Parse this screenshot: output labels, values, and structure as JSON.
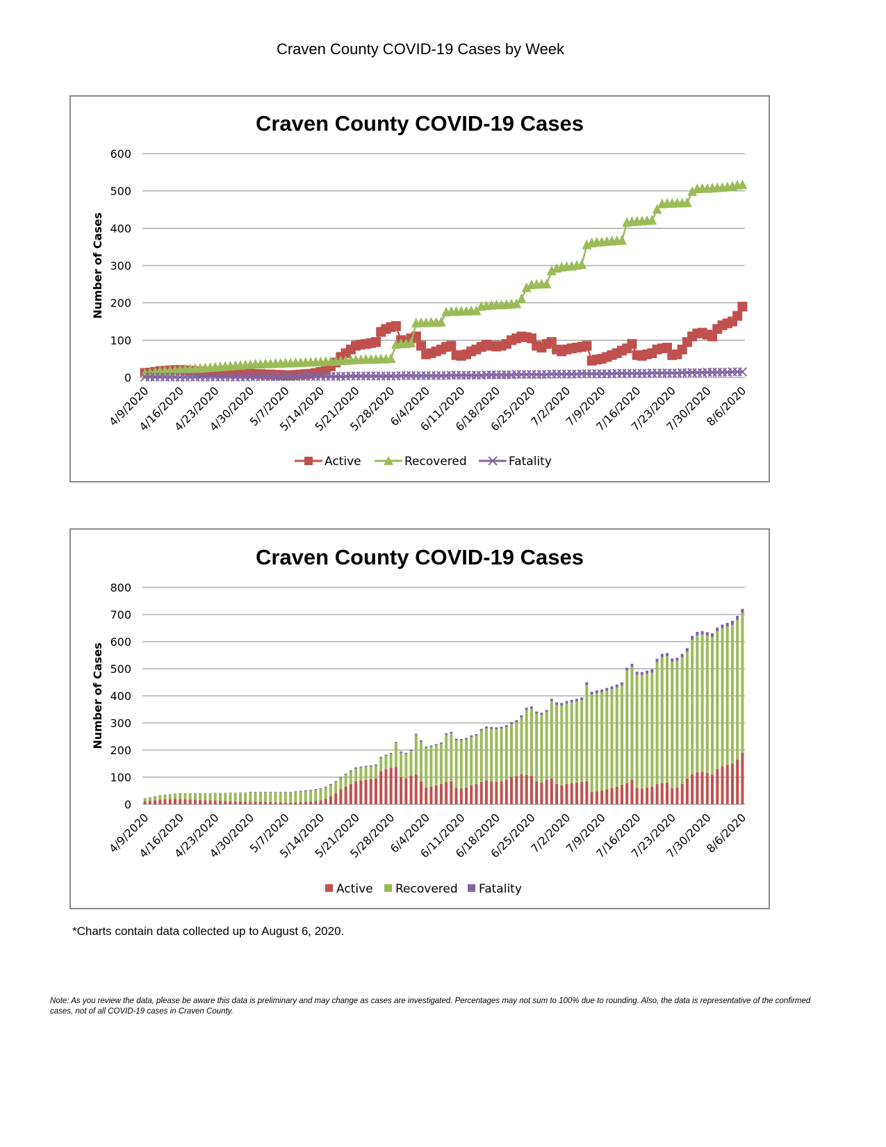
{
  "page_title": "Craven County COVID-19 Cases by Week",
  "footnote": "*Charts contain data collected up to August 6, 2020.",
  "note": "Note: As you review the data, please be aware this data is preliminary and may change as cases are investigated. Percentages may not sum to 100% due to rounding. Also, the data is representative of the confirmed cases, not of all COVID-19 cases in Craven County.",
  "colors": {
    "Active": "#c0504d",
    "Recovered": "#9bbb59",
    "Fatality": "#8064a2"
  },
  "chart_data": [
    {
      "type": "line",
      "title": "Craven County COVID-19 Cases",
      "ylabel": "Number of Cases",
      "xlabel": "",
      "ylim": [
        0,
        600
      ],
      "yticks": [
        0,
        100,
        200,
        300,
        400,
        500,
        600
      ],
      "grid": true,
      "legend": "bottom",
      "markers": {
        "Active": "square",
        "Recovered": "triangle",
        "Fatality": "x"
      },
      "x_start": "4/9/2020",
      "x_end": "8/6/2020",
      "x_step_days": 1,
      "xtick_labels": [
        "4/9/2020",
        "4/16/2020",
        "4/23/2020",
        "4/30/2020",
        "5/7/2020",
        "5/14/2020",
        "5/21/2020",
        "5/28/2020",
        "6/4/2020",
        "6/11/2020",
        "6/18/2020",
        "6/25/2020",
        "7/2/2020",
        "7/9/2020",
        "7/16/2020",
        "7/23/2020",
        "7/30/2020",
        "8/6/2020"
      ],
      "series": [
        {
          "name": "Active",
          "values": [
            12,
            13,
            15,
            17,
            18,
            19,
            20,
            20,
            19,
            18,
            17,
            16,
            15,
            14,
            14,
            13,
            12,
            12,
            11,
            11,
            10,
            10,
            9,
            9,
            8,
            8,
            7,
            7,
            6,
            6,
            7,
            8,
            9,
            10,
            12,
            15,
            20,
            30,
            40,
            55,
            65,
            75,
            85,
            88,
            90,
            92,
            95,
            122,
            130,
            135,
            138,
            100,
            95,
            105,
            110,
            85,
            62,
            65,
            70,
            75,
            82,
            85,
            60,
            58,
            62,
            70,
            75,
            82,
            88,
            85,
            83,
            85,
            90,
            100,
            105,
            110,
            108,
            105,
            85,
            80,
            90,
            95,
            75,
            70,
            75,
            78,
            80,
            82,
            85,
            45,
            48,
            50,
            55,
            60,
            65,
            72,
            78,
            90,
            60,
            58,
            62,
            65,
            75,
            78,
            80,
            60,
            62,
            75,
            95,
            110,
            118,
            120,
            115,
            110,
            130,
            140,
            145,
            150,
            165,
            190
          ]
        },
        {
          "name": "Recovered",
          "values": [
            10,
            12,
            14,
            16,
            17,
            18,
            19,
            20,
            21,
            22,
            23,
            24,
            25,
            26,
            27,
            28,
            29,
            30,
            31,
            32,
            33,
            34,
            35,
            35,
            36,
            36,
            37,
            37,
            38,
            38,
            39,
            39,
            40,
            40,
            41,
            41,
            42,
            42,
            43,
            44,
            45,
            46,
            47,
            47,
            48,
            48,
            48,
            49,
            49,
            50,
            88,
            90,
            90,
            92,
            145,
            146,
            146,
            147,
            147,
            148,
            175,
            176,
            176,
            177,
            177,
            178,
            178,
            190,
            192,
            193,
            194,
            194,
            195,
            196,
            197,
            210,
            240,
            248,
            249,
            250,
            250,
            285,
            292,
            295,
            297,
            298,
            300,
            302,
            355,
            360,
            362,
            363,
            364,
            365,
            366,
            367,
            415,
            417,
            418,
            419,
            420,
            421,
            450,
            465,
            466,
            466,
            467,
            467,
            468,
            498,
            505,
            506,
            506,
            507,
            508,
            509,
            510,
            512,
            515,
            516
          ]
        },
        {
          "name": "Fatality",
          "values": [
            1,
            1,
            1,
            1,
            1,
            1,
            1,
            1,
            1,
            1,
            1,
            1,
            1,
            1,
            1,
            1,
            1,
            1,
            1,
            1,
            1,
            2,
            2,
            2,
            2,
            2,
            2,
            2,
            2,
            2,
            2,
            3,
            3,
            3,
            3,
            3,
            3,
            3,
            3,
            3,
            3,
            4,
            4,
            4,
            4,
            4,
            4,
            4,
            4,
            4,
            4,
            5,
            5,
            5,
            5,
            5,
            5,
            5,
            5,
            5,
            5,
            6,
            6,
            6,
            6,
            6,
            6,
            6,
            7,
            7,
            7,
            7,
            7,
            7,
            8,
            8,
            8,
            8,
            8,
            8,
            8,
            9,
            9,
            9,
            9,
            9,
            9,
            10,
            10,
            10,
            10,
            10,
            10,
            10,
            11,
            11,
            11,
            11,
            11,
            11,
            11,
            12,
            12,
            12,
            12,
            12,
            12,
            13,
            13,
            13,
            13,
            13,
            14,
            14,
            14,
            14,
            14,
            15,
            15,
            15
          ]
        }
      ]
    },
    {
      "type": "bar",
      "stacked": true,
      "title": "Craven County COVID-19 Cases",
      "ylabel": "Number of Cases",
      "xlabel": "",
      "ylim": [
        0,
        800
      ],
      "yticks": [
        0,
        100,
        200,
        300,
        400,
        500,
        600,
        700,
        800
      ],
      "grid": true,
      "legend": "bottom",
      "same_series_as_chart": 0,
      "xtick_labels": [
        "4/9/2020",
        "4/16/2020",
        "4/23/2020",
        "4/30/2020",
        "5/7/2020",
        "5/14/2020",
        "5/21/2020",
        "5/28/2020",
        "6/4/2020",
        "6/11/2020",
        "6/18/2020",
        "6/25/2020",
        "7/2/2020",
        "7/9/2020",
        "7/16/2020",
        "7/23/2020",
        "7/30/2020",
        "8/6/2020"
      ],
      "series_names": [
        "Active",
        "Recovered",
        "Fatality"
      ]
    }
  ]
}
